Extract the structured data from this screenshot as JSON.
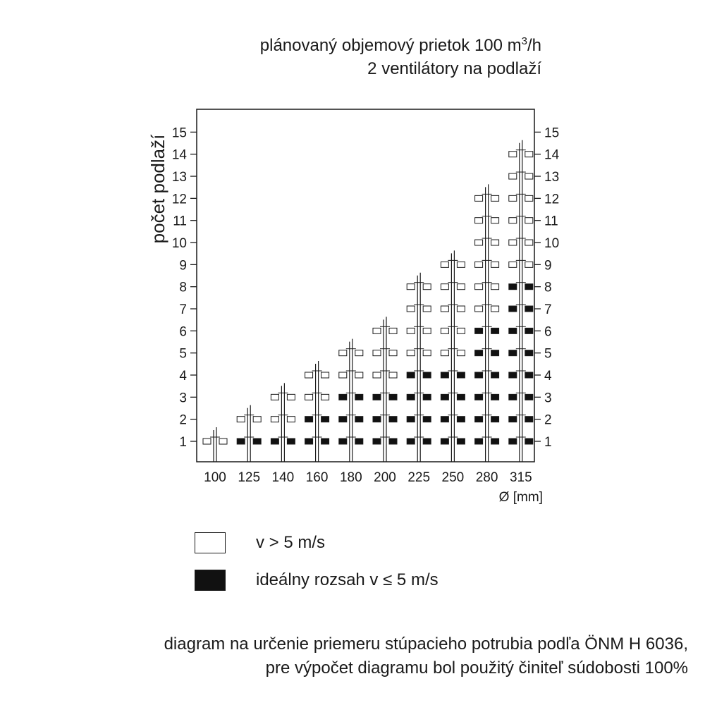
{
  "title_part1": "plánovaný objemový prietok 100 m",
  "title_sup": "3",
  "title_part2": "/h",
  "subtitle": "2 ventilátory na podlaží",
  "footnote_line1": "diagram na určenie priemeru stúpacieho potrubia podľa ÖNM H 6036,",
  "footnote_line2": "pre výpočet diagramu bol použitý činiteľ súdobosti 100%",
  "colors": {
    "ok": "#111111",
    "over": "#ffffff",
    "line": "#1a1a1a"
  },
  "chart_data": {
    "type": "heatmap",
    "ylabel": "počet podlaží",
    "xlabel": "Ø [mm]",
    "categories": [
      "100",
      "125",
      "140",
      "160",
      "180",
      "200",
      "225",
      "250",
      "280",
      "315"
    ],
    "y_ticks": [
      1,
      2,
      3,
      4,
      5,
      6,
      7,
      8,
      9,
      10,
      11,
      12,
      13,
      14,
      15
    ],
    "ylim": [
      1,
      15
    ],
    "legend": [
      {
        "key": "over",
        "label": "v > 5 m/s"
      },
      {
        "key": "ok",
        "label": "ideálny rozsah v ≤ 5 m/s"
      }
    ],
    "columns": [
      {
        "diameter": "100",
        "max_floors": 1,
        "ideal_up_to_floor": 0
      },
      {
        "diameter": "125",
        "max_floors": 2,
        "ideal_up_to_floor": 1
      },
      {
        "diameter": "140",
        "max_floors": 3,
        "ideal_up_to_floor": 1
      },
      {
        "diameter": "160",
        "max_floors": 4,
        "ideal_up_to_floor": 2
      },
      {
        "diameter": "180",
        "max_floors": 5,
        "ideal_up_to_floor": 3
      },
      {
        "diameter": "200",
        "max_floors": 6,
        "ideal_up_to_floor": 3
      },
      {
        "diameter": "225",
        "max_floors": 8,
        "ideal_up_to_floor": 4
      },
      {
        "diameter": "250",
        "max_floors": 9,
        "ideal_up_to_floor": 4
      },
      {
        "diameter": "280",
        "max_floors": 12,
        "ideal_up_to_floor": 6
      },
      {
        "diameter": "315",
        "max_floors": 14,
        "ideal_up_to_floor": 8
      }
    ]
  }
}
